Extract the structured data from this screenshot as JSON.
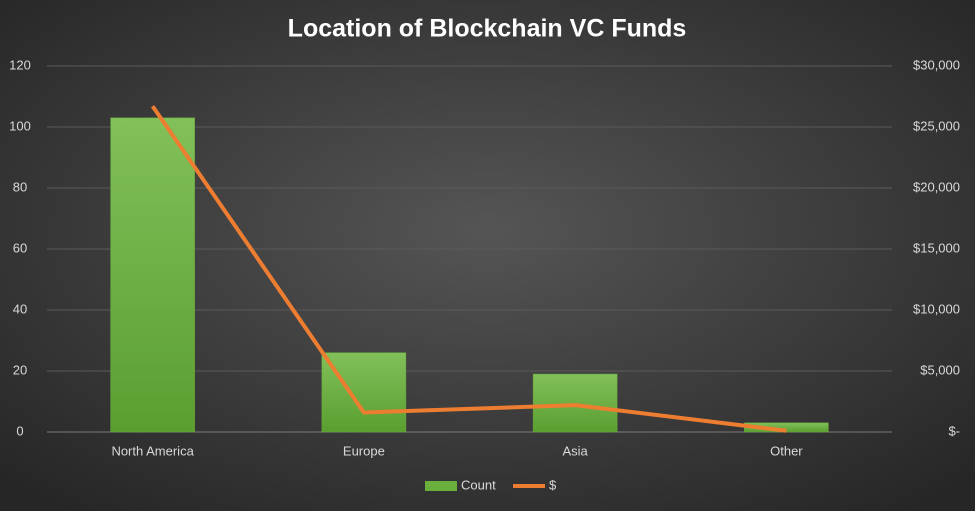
{
  "chart_data": {
    "type": "bar",
    "title": "Location of Blockchain VC Funds",
    "categories": [
      "North America",
      "Europe",
      "Asia",
      "Other"
    ],
    "series": [
      {
        "name": "Count",
        "type": "bar",
        "color": "#6aaf3d",
        "values": [
          103,
          26,
          19,
          3
        ]
      },
      {
        "name": "$",
        "type": "line",
        "axis": "y2",
        "color": "#ed7d31",
        "values": [
          26700,
          1600,
          2200,
          100
        ]
      }
    ],
    "ylim": [
      0,
      120
    ],
    "yticks": [
      0,
      20,
      40,
      60,
      80,
      100,
      120
    ],
    "y2lim": [
      0,
      30000
    ],
    "y2ticks": [
      {
        "value": 0,
        "label": "$-"
      },
      {
        "value": 5000,
        "label": "$5,000"
      },
      {
        "value": 10000,
        "label": "$10,000"
      },
      {
        "value": 15000,
        "label": "$15,000"
      },
      {
        "value": 20000,
        "label": "$20,000"
      },
      {
        "value": 25000,
        "label": "$25,000"
      },
      {
        "value": 30000,
        "label": "$30,000"
      }
    ],
    "grid": true,
    "legend": "bottom"
  }
}
